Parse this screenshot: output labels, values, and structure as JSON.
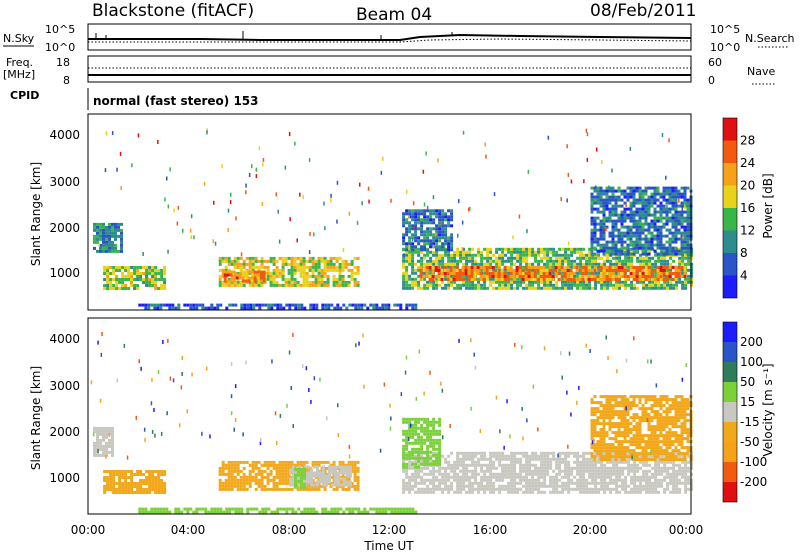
{
  "header": {
    "station": "Blackstone (fitACF)",
    "beam": "Beam 04",
    "date": "08/Feb/2011"
  },
  "top_panel": {
    "nsky_label": "N.Sky",
    "nsearch_label": "N.Search",
    "left_ticks": [
      "10^5",
      "10^0"
    ],
    "right_ticks": [
      "10^5",
      "10^0"
    ]
  },
  "freq_panel": {
    "freq_label": "Freq.",
    "freq_unit": "[MHz]",
    "left_ticks": [
      "18",
      "8"
    ],
    "nave_label": "Nave",
    "right_ticks": [
      "60",
      "0"
    ]
  },
  "cpid_panel": {
    "cpid_label": "CPID",
    "mode_text": "normal (fast stereo) 153"
  },
  "power_panel": {
    "ylabel": "Slant Range [km]",
    "yticks": [
      "4000",
      "3000",
      "2000",
      "1000"
    ],
    "colorbar_label": "Power [dB]",
    "colorbar_ticks": [
      "28",
      "24",
      "20",
      "16",
      "12",
      "8",
      "4"
    ]
  },
  "velocity_panel": {
    "ylabel": "Slant Range [km]",
    "yticks": [
      "4000",
      "3000",
      "2000",
      "1000"
    ],
    "colorbar_label": "Velocity [m s⁻¹]",
    "colorbar_ticks": [
      "200",
      "100",
      "50",
      "15",
      "-15",
      "-50",
      "-100",
      "-200"
    ]
  },
  "x_axis": {
    "ticks": [
      "00:00",
      "04:00",
      "08:00",
      "12:00",
      "16:00",
      "20:00",
      "00:00"
    ],
    "xlabel": "Time UT"
  },
  "chart_data": [
    {
      "type": "heatmap",
      "name": "power",
      "x_range_hours": [
        0,
        24
      ],
      "y_range_km": [
        180,
        4500
      ],
      "colorscale": {
        "ticks": [
          4,
          8,
          12,
          16,
          20,
          24,
          28
        ],
        "colors": [
          "#1c1cff",
          "#2a55c8",
          "#2e8c8c",
          "#39b54a",
          "#e8d21a",
          "#f7a01a",
          "#f25a0f",
          "#e01010"
        ]
      },
      "echo_regions": [
        {
          "t0": 0.2,
          "t1": 1.3,
          "r0": 1450,
          "r1": 2100,
          "level": 10
        },
        {
          "t0": 0.6,
          "t1": 3.0,
          "r0": 650,
          "r1": 1150,
          "level": 16
        },
        {
          "t0": 5.2,
          "t1": 10.8,
          "r0": 700,
          "r1": 1350,
          "level": 18
        },
        {
          "t0": 5.4,
          "t1": 7.0,
          "r0": 850,
          "r1": 1050,
          "level": 24
        },
        {
          "t0": 12.5,
          "t1": 24.0,
          "r0": 650,
          "r1": 1550,
          "level": 14
        },
        {
          "t0": 13.2,
          "t1": 23.8,
          "r0": 850,
          "r1": 1150,
          "level": 24
        },
        {
          "t0": 12.5,
          "t1": 14.5,
          "r0": 1500,
          "r1": 2400,
          "level": 8
        },
        {
          "t0": 20.0,
          "t1": 24.0,
          "r0": 1400,
          "r1": 2900,
          "level": 8
        },
        {
          "t0": 2.0,
          "t1": 13.0,
          "r0": 200,
          "r1": 320,
          "level": 6
        }
      ]
    },
    {
      "type": "heatmap",
      "name": "velocity",
      "x_range_hours": [
        0,
        24
      ],
      "y_range_km": [
        180,
        4500
      ],
      "colorscale": {
        "ticks": [
          -200,
          -100,
          -50,
          -15,
          15,
          50,
          100,
          200
        ],
        "colors": [
          "#e01010",
          "#f25a0f",
          "#f7a01a",
          "#f2a81a",
          "#c8c8c0",
          "#7ad13a",
          "#2e7d5a",
          "#2a55c8",
          "#1c1cff"
        ]
      },
      "echo_regions": [
        {
          "t0": 0.2,
          "t1": 1.0,
          "r0": 1500,
          "r1": 2100,
          "level": 0
        },
        {
          "t0": 0.6,
          "t1": 3.0,
          "r0": 650,
          "r1": 1150,
          "level": -40
        },
        {
          "t0": 5.2,
          "t1": 10.8,
          "r0": 700,
          "r1": 1350,
          "level": -40
        },
        {
          "t0": 8.0,
          "t1": 10.5,
          "r0": 800,
          "r1": 1250,
          "level": 0
        },
        {
          "t0": 8.2,
          "t1": 8.6,
          "r0": 750,
          "r1": 1200,
          "level": 30
        },
        {
          "t0": 12.5,
          "t1": 24.0,
          "r0": 650,
          "r1": 1550,
          "level": 0
        },
        {
          "t0": 12.5,
          "t1": 14.0,
          "r0": 1200,
          "r1": 2300,
          "level": 20
        },
        {
          "t0": 20.0,
          "t1": 24.0,
          "r0": 1400,
          "r1": 2800,
          "level": -30
        },
        {
          "t0": 2.0,
          "t1": 13.0,
          "r0": 200,
          "r1": 320,
          "level": 20
        }
      ]
    }
  ]
}
